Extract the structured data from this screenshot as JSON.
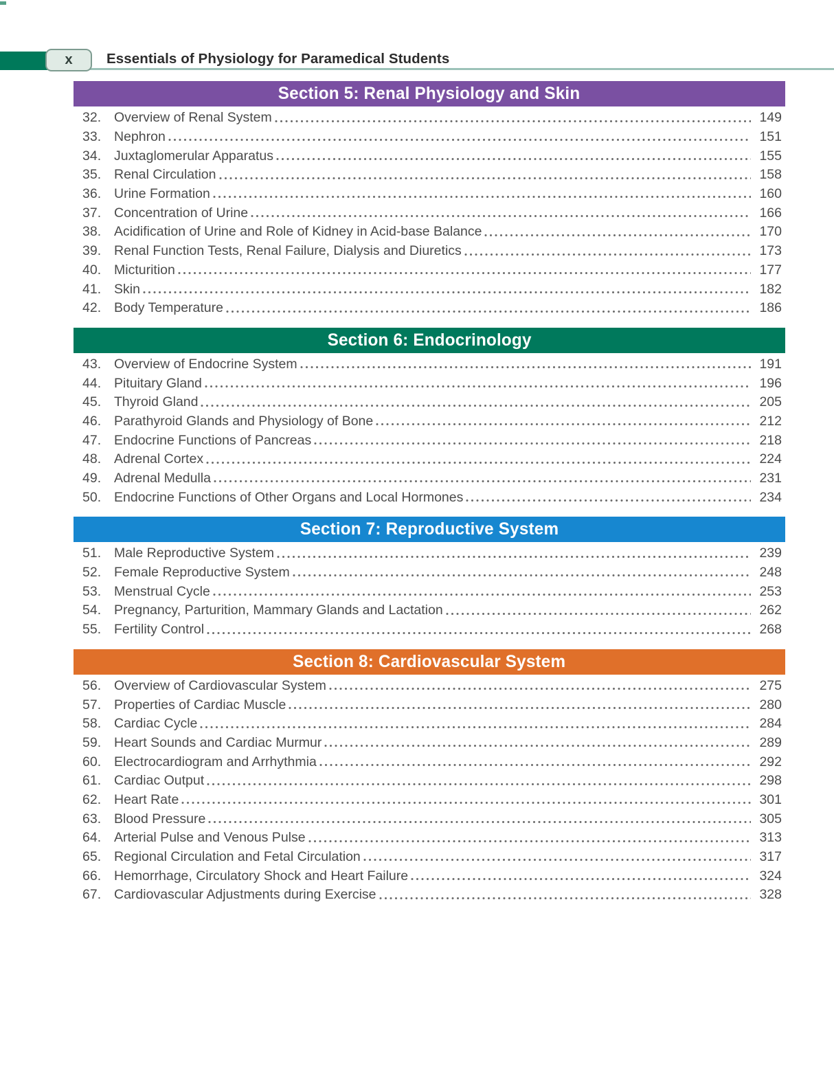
{
  "header": {
    "page_number": "x",
    "running_title": "Essentials of Physiology for Paramedical Students"
  },
  "colors": {
    "tab_green": "#00795a",
    "rule_teal": "#9cc2b8",
    "section5_purple": "#7a50a2",
    "section6_green": "#00795c",
    "section7_blue": "#1787d0",
    "section8_orange": "#e0702a"
  },
  "sections": [
    {
      "title": "Section 5: Renal Physiology and Skin",
      "color": "#7a50a2",
      "entries": [
        {
          "num": "32.",
          "title": "Overview of Renal System",
          "page": "149"
        },
        {
          "num": "33.",
          "title": "Nephron",
          "page": "151"
        },
        {
          "num": "34.",
          "title": "Juxtaglomerular Apparatus",
          "page": "155"
        },
        {
          "num": "35.",
          "title": "Renal Circulation",
          "page": "158"
        },
        {
          "num": "36.",
          "title": "Urine Formation",
          "page": "160"
        },
        {
          "num": "37.",
          "title": "Concentration of Urine",
          "page": "166"
        },
        {
          "num": "38.",
          "title": "Acidification of Urine and Role of Kidney in Acid-base Balance",
          "page": "170"
        },
        {
          "num": "39.",
          "title": "Renal Function Tests, Renal Failure, Dialysis and Diuretics",
          "page": "173"
        },
        {
          "num": "40.",
          "title": "Micturition",
          "page": "177"
        },
        {
          "num": "41.",
          "title": "Skin",
          "page": "182"
        },
        {
          "num": "42.",
          "title": "Body Temperature",
          "page": "186"
        }
      ]
    },
    {
      "title": "Section 6: Endocrinology",
      "color": "#00795c",
      "entries": [
        {
          "num": "43.",
          "title": "Overview of Endocrine System",
          "page": "191"
        },
        {
          "num": "44.",
          "title": "Pituitary Gland",
          "page": "196"
        },
        {
          "num": "45.",
          "title": "Thyroid Gland",
          "page": "205"
        },
        {
          "num": "46.",
          "title": "Parathyroid Glands and Physiology of Bone",
          "page": "212"
        },
        {
          "num": "47.",
          "title": "Endocrine Functions of Pancreas",
          "page": "218"
        },
        {
          "num": "48.",
          "title": "Adrenal Cortex",
          "page": "224"
        },
        {
          "num": "49.",
          "title": "Adrenal Medulla",
          "page": "231"
        },
        {
          "num": "50.",
          "title": "Endocrine Functions of Other Organs and Local Hormones",
          "page": "234"
        }
      ]
    },
    {
      "title": "Section 7: Reproductive System",
      "color": "#1787d0",
      "entries": [
        {
          "num": "51.",
          "title": "Male Reproductive System",
          "page": "239"
        },
        {
          "num": "52.",
          "title": "Female Reproductive System",
          "page": "248"
        },
        {
          "num": "53.",
          "title": "Menstrual Cycle",
          "page": "253"
        },
        {
          "num": "54.",
          "title": "Pregnancy, Parturition, Mammary Glands and Lactation",
          "page": "262"
        },
        {
          "num": "55.",
          "title": "Fertility Control",
          "page": "268"
        }
      ]
    },
    {
      "title": "Section 8: Cardiovascular System",
      "color": "#e0702a",
      "entries": [
        {
          "num": "56.",
          "title": "Overview of Cardiovascular System",
          "page": "275"
        },
        {
          "num": "57.",
          "title": "Properties of Cardiac Muscle",
          "page": "280"
        },
        {
          "num": "58.",
          "title": "Cardiac Cycle",
          "page": "284"
        },
        {
          "num": "59.",
          "title": "Heart Sounds and Cardiac Murmur",
          "page": "289"
        },
        {
          "num": "60.",
          "title": "Electrocardiogram and Arrhythmia",
          "page": "292"
        },
        {
          "num": "61.",
          "title": "Cardiac Output",
          "page": "298"
        },
        {
          "num": "62.",
          "title": "Heart Rate",
          "page": "301"
        },
        {
          "num": "63.",
          "title": "Blood Pressure",
          "page": "305"
        },
        {
          "num": "64.",
          "title": "Arterial Pulse and Venous Pulse",
          "page": "313"
        },
        {
          "num": "65.",
          "title": "Regional Circulation and Fetal Circulation",
          "page": "317"
        },
        {
          "num": "66.",
          "title": "Hemorrhage, Circulatory Shock and Heart Failure",
          "page": "324"
        },
        {
          "num": "67.",
          "title": "Cardiovascular Adjustments during Exercise",
          "page": "328"
        }
      ]
    }
  ]
}
